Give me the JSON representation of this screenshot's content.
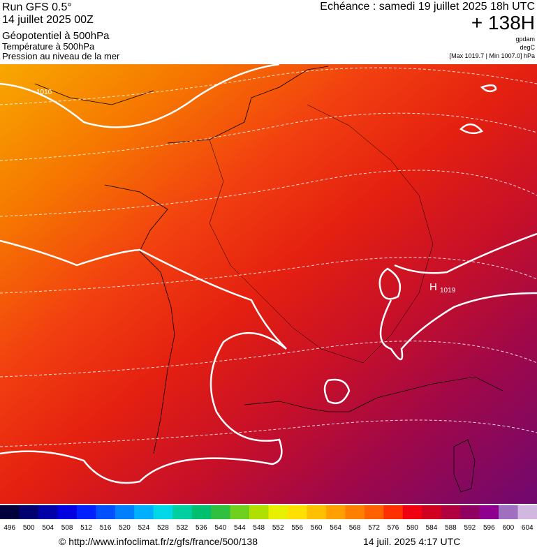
{
  "header": {
    "left": [
      "Run GFS 0.5°",
      "14 juillet 2025 00Z",
      "Géopotentiel à 500hPa",
      "Température à 500hPa",
      "Pression au niveau de la mer"
    ],
    "right": {
      "forecast": "Echéance : samedi 19 juillet 2025 18h UTC",
      "lead": "+ 138H",
      "units": [
        "gpdam",
        "degC"
      ],
      "range": "[Max 1019.7 | Min 1007.0] hPa"
    }
  },
  "map": {
    "isobar_label": "1010",
    "high": {
      "letter": "H",
      "value": "1019"
    }
  },
  "legend": {
    "labels": [
      496,
      500,
      504,
      508,
      512,
      516,
      520,
      524,
      528,
      532,
      536,
      540,
      544,
      548,
      552,
      556,
      560,
      564,
      568,
      572,
      576,
      580,
      584,
      588,
      592,
      596,
      600,
      604
    ],
    "colors": [
      "#00003c",
      "#000070",
      "#0000a8",
      "#0000e0",
      "#0020ff",
      "#0050ff",
      "#0080ff",
      "#00b0ff",
      "#00d8e8",
      "#00d0a0",
      "#00c070",
      "#30c040",
      "#70d020",
      "#b0e000",
      "#e8f000",
      "#ffe000",
      "#ffc000",
      "#ffa000",
      "#ff8000",
      "#ff6000",
      "#ff3000",
      "#f00010",
      "#d00020",
      "#b00040",
      "#900060",
      "#900090",
      "#a070c0",
      "#d0b8e0"
    ]
  },
  "footer": {
    "source": "© http://www.infoclimat.fr/z/gfs/france/500/138",
    "date": "14 juil. 2025  4:17 UTC"
  }
}
